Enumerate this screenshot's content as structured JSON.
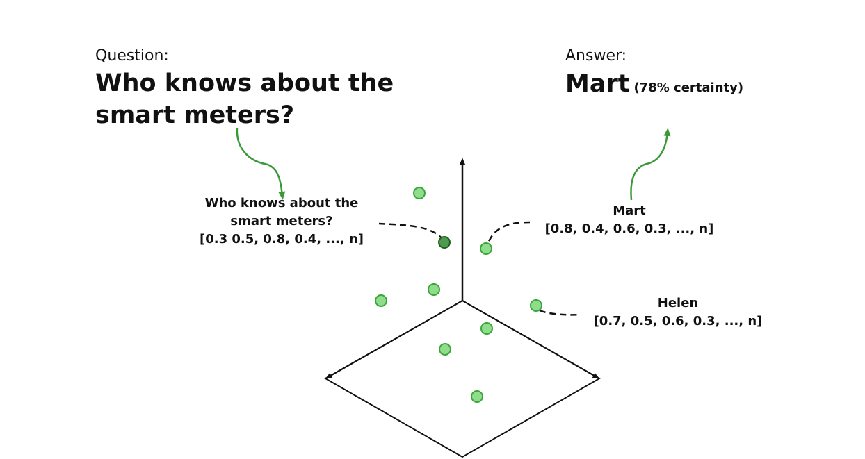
{
  "question": {
    "heading": "Question:",
    "title_line1": "Who knows about the",
    "title_line2": "smart meters?"
  },
  "answer": {
    "heading": "Answer:",
    "name": "Mart",
    "certainty": "(78% certainty)"
  },
  "query_point": {
    "line1": "Who knows about the",
    "line2": "smart meters?",
    "vector": "[0.3 0.5, 0.8, 0.4, ..., n]"
  },
  "mart_point": {
    "name": "Mart",
    "vector": "[0.8, 0.4, 0.6, 0.3, ..., n]"
  },
  "helen_point": {
    "name": "Helen",
    "vector": "[0.7, 0.5, 0.6, 0.3, ..., n]"
  },
  "colors": {
    "point_fill": "#8fdc8a",
    "point_stroke": "#3aa53a",
    "arrow_green": "#3a9a3a",
    "axis": "#111111"
  }
}
